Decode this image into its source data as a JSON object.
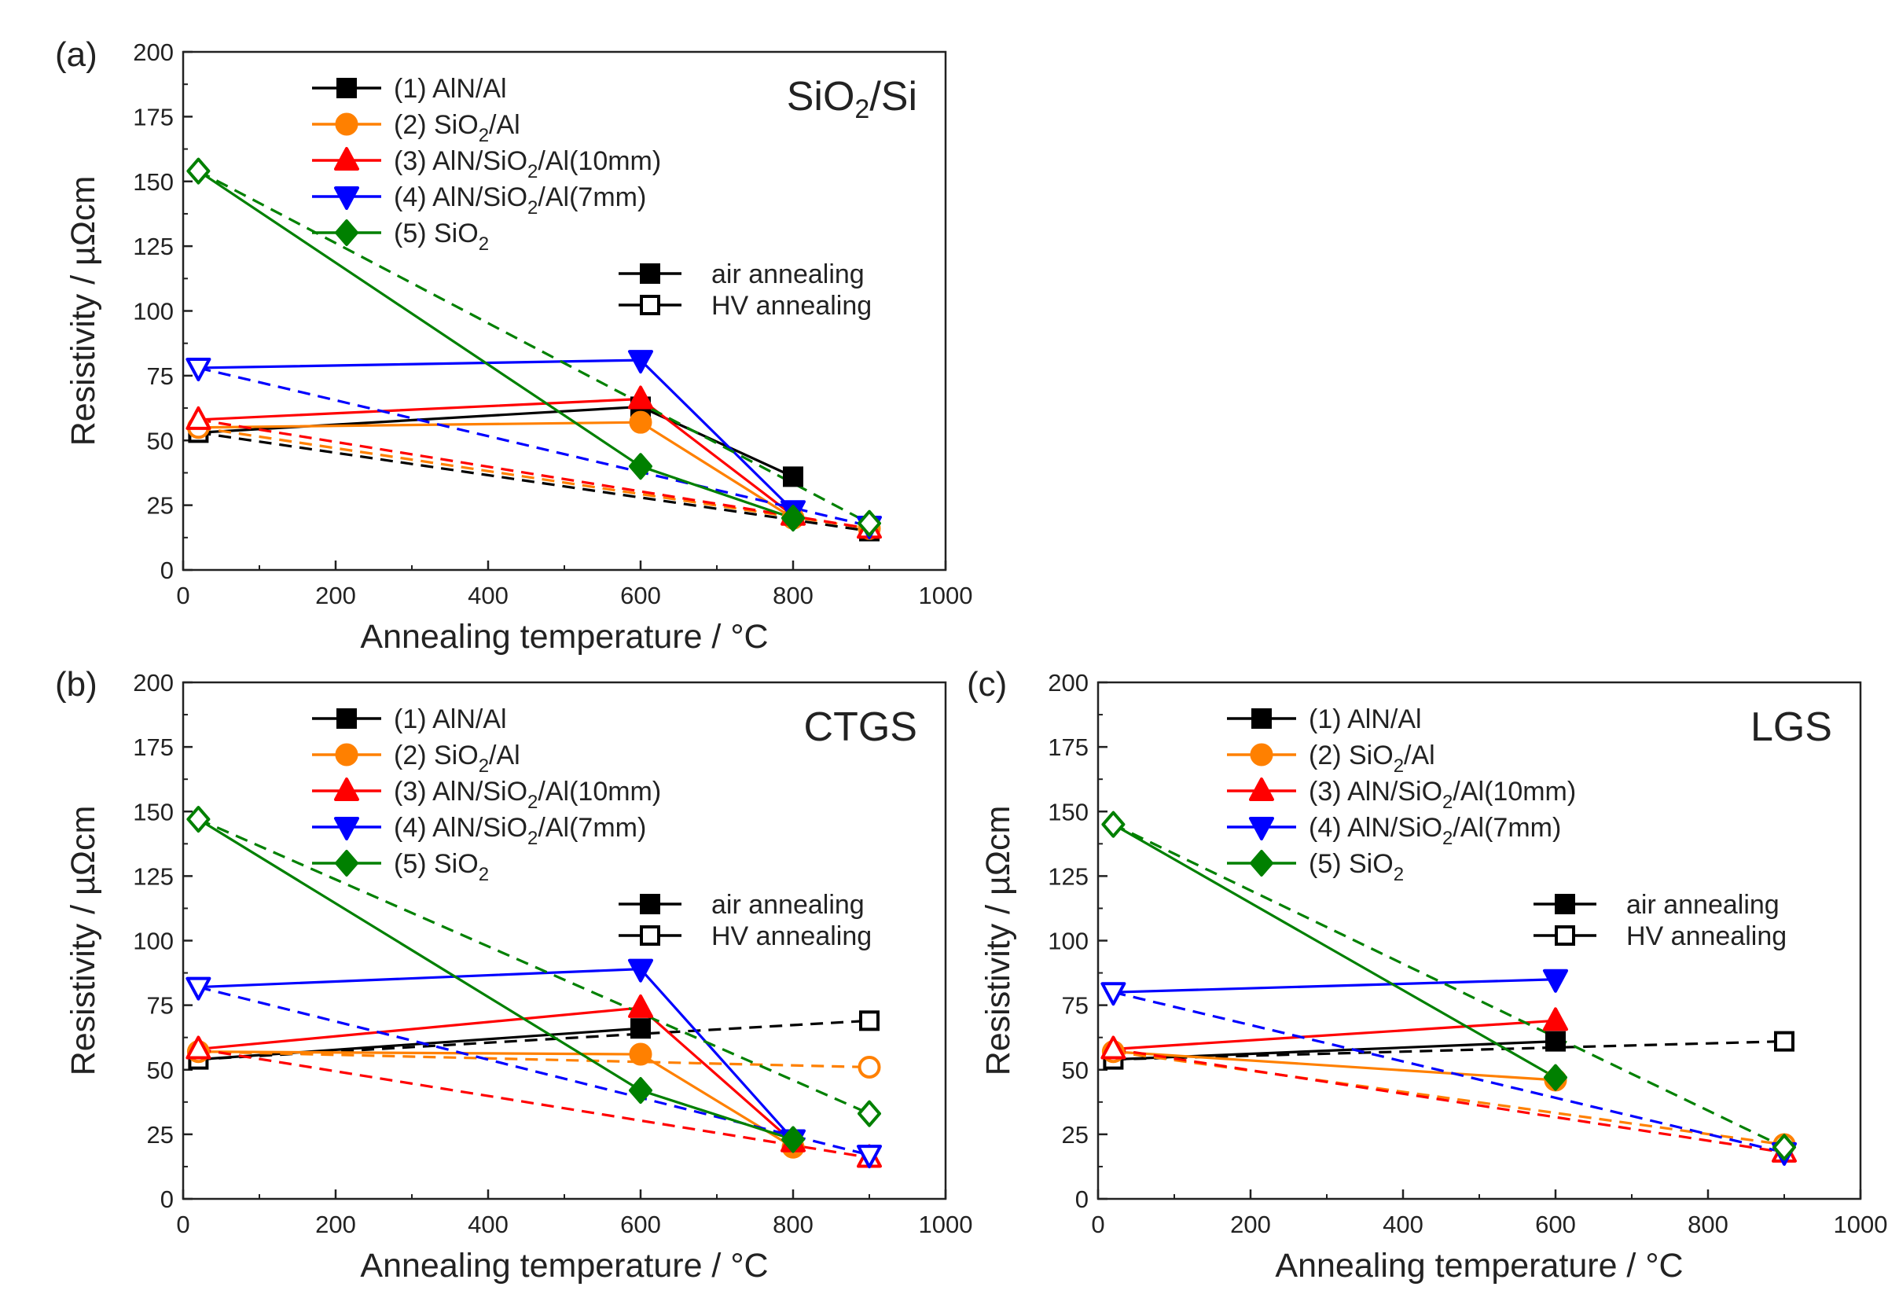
{
  "figure": {
    "legend_entries": [
      {
        "id": 1,
        "prefix": "(1) AlN/Al",
        "sub": "",
        "suffix": "",
        "color": "#000000",
        "marker": "square"
      },
      {
        "id": 2,
        "prefix": "(2) SiO",
        "sub": "2",
        "suffix": "/Al",
        "color": "#ff8000",
        "marker": "circle"
      },
      {
        "id": 3,
        "prefix": "(3) AlN/SiO",
        "sub": "2",
        "suffix": "/Al(10mm)",
        "color": "#ff0000",
        "marker": "triangle-up"
      },
      {
        "id": 4,
        "prefix": "(4) AlN/SiO",
        "sub": "2",
        "suffix": "/Al(7mm)",
        "color": "#0000ff",
        "marker": "triangle-down"
      },
      {
        "id": 5,
        "prefix": "(5) SiO",
        "sub": "2",
        "suffix": "",
        "color": "#008000",
        "marker": "diamond"
      }
    ],
    "style_legend": {
      "air": "air annealing",
      "hv": "HV annealing"
    }
  },
  "chart_data": [
    {
      "type": "line",
      "panel": "(a)",
      "material": {
        "prefix": "SiO",
        "sub": "2",
        "suffix": "/Si"
      },
      "xlabel": "Annealing temperature / °C",
      "ylabel": "Resistivity / µΩcm",
      "xlim": [
        0,
        1000
      ],
      "ylim": [
        0,
        200
      ],
      "xticks": [
        0,
        200,
        400,
        600,
        800,
        1000
      ],
      "yticks": [
        0,
        25,
        50,
        75,
        100,
        125,
        150,
        175,
        200
      ],
      "series": [
        {
          "name": "(1) AlN/Al air",
          "sample": 1,
          "mode": "air",
          "points": [
            [
              20,
              53
            ],
            [
              600,
              63
            ],
            [
              800,
              36
            ]
          ]
        },
        {
          "name": "(1) AlN/Al HV",
          "sample": 1,
          "mode": "hv",
          "points": [
            [
              20,
              53
            ],
            [
              900,
              15
            ]
          ]
        },
        {
          "name": "(2) SiO2/Al air",
          "sample": 2,
          "mode": "air",
          "points": [
            [
              20,
              55
            ],
            [
              600,
              57
            ],
            [
              800,
              20
            ]
          ]
        },
        {
          "name": "(2) SiO2/Al HV",
          "sample": 2,
          "mode": "hv",
          "points": [
            [
              20,
              55
            ],
            [
              900,
              16
            ]
          ]
        },
        {
          "name": "(3) AlN/SiO2/Al(10mm) air",
          "sample": 3,
          "mode": "air",
          "points": [
            [
              20,
              58
            ],
            [
              600,
              66
            ],
            [
              800,
              21
            ]
          ]
        },
        {
          "name": "(3) AlN/SiO2/Al(10mm) HV",
          "sample": 3,
          "mode": "hv",
          "points": [
            [
              20,
              58
            ],
            [
              900,
              16
            ]
          ]
        },
        {
          "name": "(4) AlN/SiO2/Al(7mm) air",
          "sample": 4,
          "mode": "air",
          "points": [
            [
              20,
              78
            ],
            [
              600,
              81
            ],
            [
              800,
              23
            ]
          ]
        },
        {
          "name": "(4) AlN/SiO2/Al(7mm) HV",
          "sample": 4,
          "mode": "hv",
          "points": [
            [
              20,
              78
            ],
            [
              900,
              17
            ]
          ]
        },
        {
          "name": "(5) SiO2 air",
          "sample": 5,
          "mode": "air",
          "points": [
            [
              20,
              154
            ],
            [
              600,
              40
            ],
            [
              800,
              20
            ]
          ]
        },
        {
          "name": "(5) SiO2 HV",
          "sample": 5,
          "mode": "hv",
          "points": [
            [
              20,
              154
            ],
            [
              900,
              18
            ]
          ]
        }
      ]
    },
    {
      "type": "line",
      "panel": "(b)",
      "material": {
        "prefix": "CTGS",
        "sub": "",
        "suffix": ""
      },
      "xlabel": "Annealing temperature / °C",
      "ylabel": "Resistivity / µΩcm",
      "xlim": [
        0,
        1000
      ],
      "ylim": [
        0,
        200
      ],
      "xticks": [
        0,
        200,
        400,
        600,
        800,
        1000
      ],
      "yticks": [
        0,
        25,
        50,
        75,
        100,
        125,
        150,
        175,
        200
      ],
      "series": [
        {
          "name": "(1) AlN/Al air",
          "sample": 1,
          "mode": "air",
          "points": [
            [
              20,
              54
            ],
            [
              600,
              66
            ]
          ]
        },
        {
          "name": "(1) AlN/Al HV",
          "sample": 1,
          "mode": "hv",
          "points": [
            [
              20,
              54
            ],
            [
              900,
              69
            ]
          ]
        },
        {
          "name": "(2) SiO2/Al air",
          "sample": 2,
          "mode": "air",
          "points": [
            [
              20,
              57
            ],
            [
              600,
              56
            ],
            [
              800,
              20
            ]
          ]
        },
        {
          "name": "(2) SiO2/Al HV",
          "sample": 2,
          "mode": "hv",
          "points": [
            [
              20,
              57
            ],
            [
              900,
              51
            ]
          ]
        },
        {
          "name": "(3) AlN/SiO2/Al(10mm) air",
          "sample": 3,
          "mode": "air",
          "points": [
            [
              20,
              58
            ],
            [
              600,
              74
            ],
            [
              800,
              22
            ]
          ]
        },
        {
          "name": "(3) AlN/SiO2/Al(10mm) HV",
          "sample": 3,
          "mode": "hv",
          "points": [
            [
              20,
              58
            ],
            [
              900,
              16
            ]
          ]
        },
        {
          "name": "(4) AlN/SiO2/Al(7mm) air",
          "sample": 4,
          "mode": "air",
          "points": [
            [
              20,
              82
            ],
            [
              600,
              89
            ],
            [
              800,
              23
            ]
          ]
        },
        {
          "name": "(4) AlN/SiO2/Al(7mm) HV",
          "sample": 4,
          "mode": "hv",
          "points": [
            [
              20,
              82
            ],
            [
              900,
              17
            ]
          ]
        },
        {
          "name": "(5) SiO2 air",
          "sample": 5,
          "mode": "air",
          "points": [
            [
              20,
              147
            ],
            [
              600,
              42
            ],
            [
              800,
              23
            ]
          ]
        },
        {
          "name": "(5) SiO2 HV",
          "sample": 5,
          "mode": "hv",
          "points": [
            [
              20,
              147
            ],
            [
              900,
              33
            ]
          ]
        }
      ]
    },
    {
      "type": "line",
      "panel": "(c)",
      "material": {
        "prefix": "LGS",
        "sub": "",
        "suffix": ""
      },
      "xlabel": "Annealing temperature / °C",
      "ylabel": "Resistivity / µΩcm",
      "xlim": [
        0,
        1000
      ],
      "ylim": [
        0,
        200
      ],
      "xticks": [
        0,
        200,
        400,
        600,
        800,
        1000
      ],
      "yticks": [
        0,
        25,
        50,
        75,
        100,
        125,
        150,
        175,
        200
      ],
      "series": [
        {
          "name": "(1) AlN/Al air",
          "sample": 1,
          "mode": "air",
          "points": [
            [
              20,
              54
            ],
            [
              600,
              61
            ]
          ]
        },
        {
          "name": "(1) AlN/Al HV",
          "sample": 1,
          "mode": "hv",
          "points": [
            [
              20,
              54
            ],
            [
              900,
              61
            ]
          ]
        },
        {
          "name": "(2) SiO2/Al air",
          "sample": 2,
          "mode": "air",
          "points": [
            [
              20,
              57
            ],
            [
              600,
              46
            ]
          ]
        },
        {
          "name": "(2) SiO2/Al HV",
          "sample": 2,
          "mode": "hv",
          "points": [
            [
              20,
              57
            ],
            [
              900,
              21
            ]
          ]
        },
        {
          "name": "(3) AlN/SiO2/Al(10mm) air",
          "sample": 3,
          "mode": "air",
          "points": [
            [
              20,
              58
            ],
            [
              600,
              69
            ]
          ]
        },
        {
          "name": "(3) AlN/SiO2/Al(10mm) HV",
          "sample": 3,
          "mode": "hv",
          "points": [
            [
              20,
              58
            ],
            [
              900,
              18
            ]
          ]
        },
        {
          "name": "(4) AlN/SiO2/Al(7mm) air",
          "sample": 4,
          "mode": "air",
          "points": [
            [
              20,
              80
            ],
            [
              600,
              85
            ]
          ]
        },
        {
          "name": "(4) AlN/SiO2/Al(7mm) HV",
          "sample": 4,
          "mode": "hv",
          "points": [
            [
              20,
              80
            ],
            [
              900,
              18
            ]
          ]
        },
        {
          "name": "(5) SiO2 air",
          "sample": 5,
          "mode": "air",
          "points": [
            [
              20,
              145
            ],
            [
              600,
              47
            ]
          ]
        },
        {
          "name": "(5) SiO2 HV",
          "sample": 5,
          "mode": "hv",
          "points": [
            [
              20,
              145
            ],
            [
              900,
              20
            ]
          ]
        }
      ]
    }
  ]
}
